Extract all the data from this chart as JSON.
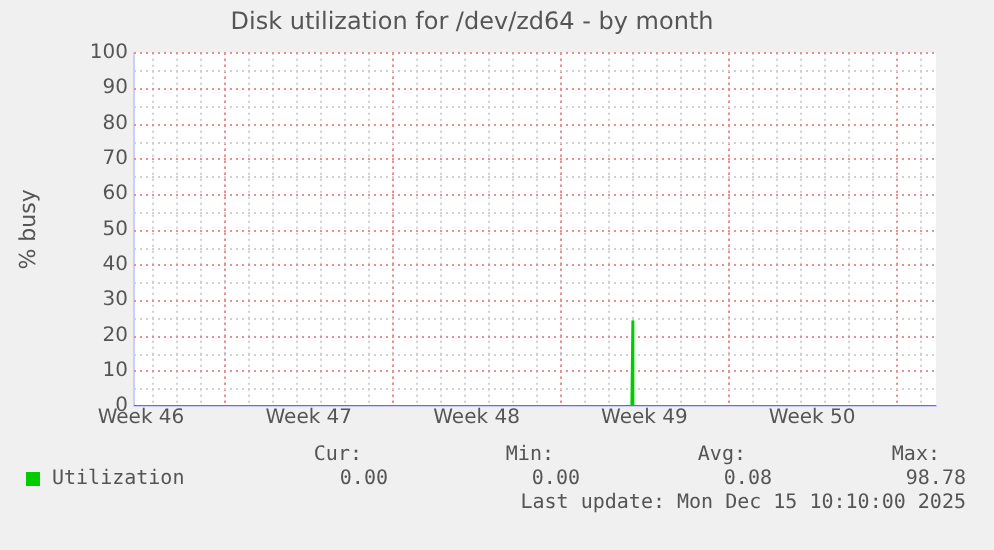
{
  "chart_data": {
    "type": "line",
    "title": "Disk utilization for /dev/zd64 - by month",
    "ylabel": "% busy",
    "series": [
      {
        "name": "Utilization",
        "color": "#00cc00",
        "x": [
          "2025-11-13T05:00",
          "2025-12-03T23:00",
          "2025-12-04T00:00",
          "2025-12-04T01:00",
          "2025-12-16T16:00"
        ],
        "values": [
          0,
          0,
          24,
          0,
          0
        ]
      }
    ],
    "xlim": [
      "2025-11-13T05:00",
      "2025-12-16T16:00"
    ],
    "xticks": [
      {
        "value": "2025-11-13T12:00",
        "label": "Week 46"
      },
      {
        "value": "2025-11-20T12:00",
        "label": "Week 47"
      },
      {
        "value": "2025-11-27T12:00",
        "label": "Week 48"
      },
      {
        "value": "2025-12-04T12:00",
        "label": "Week 49"
      },
      {
        "value": "2025-12-11T12:00",
        "label": "Week 50"
      }
    ],
    "ylim": [
      0,
      100
    ],
    "yticks": [
      0,
      10,
      20,
      30,
      40,
      50,
      60,
      70,
      80,
      90,
      100
    ],
    "grid": true,
    "legend": "bottom left",
    "marker": "none",
    "annotations": [
      "Cur:",
      "0.00",
      "Min:",
      "0.00",
      "Avg:",
      "0.08",
      "Max:",
      "98.78",
      "Last update: Mon Dec 15 10:10:00 2025"
    ]
  }
}
